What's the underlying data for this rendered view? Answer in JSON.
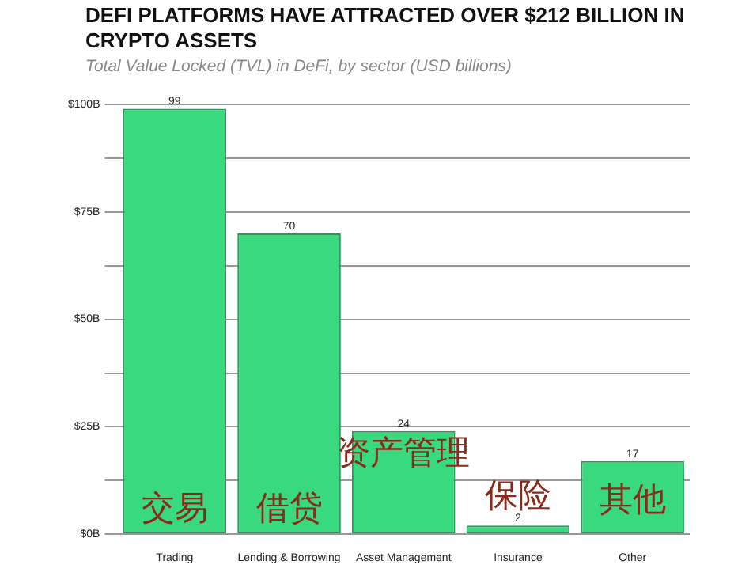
{
  "chart_data": {
    "type": "bar",
    "title": "DEFI PLATFORMS HAVE ATTRACTED OVER $212 BILLION IN CRYPTO ASSETS",
    "subtitle": "Total Value Locked (TVL) in DeFi, by sector (USD billions)",
    "categories": [
      "Trading",
      "Lending & Borrowing",
      "Asset Management",
      "Insurance",
      "Other"
    ],
    "values": [
      99,
      70,
      24,
      2,
      17
    ],
    "color": "#38d97f",
    "ylim": [
      0,
      100
    ],
    "yticks": [
      {
        "value": 0,
        "label": "$0B"
      },
      {
        "value": 12.5,
        "label": null
      },
      {
        "value": 25,
        "label": "$25B"
      },
      {
        "value": 37.5,
        "label": null
      },
      {
        "value": 50,
        "label": "$50B"
      },
      {
        "value": 62.5,
        "label": null
      },
      {
        "value": 75,
        "label": "$75B"
      },
      {
        "value": 87.5,
        "label": null
      },
      {
        "value": 100,
        "label": "$100B"
      }
    ],
    "grid": "y",
    "legend": false,
    "data_labels": true,
    "annotations": [
      "交易",
      "借贷",
      "资产管理",
      "保险",
      "其他"
    ]
  }
}
